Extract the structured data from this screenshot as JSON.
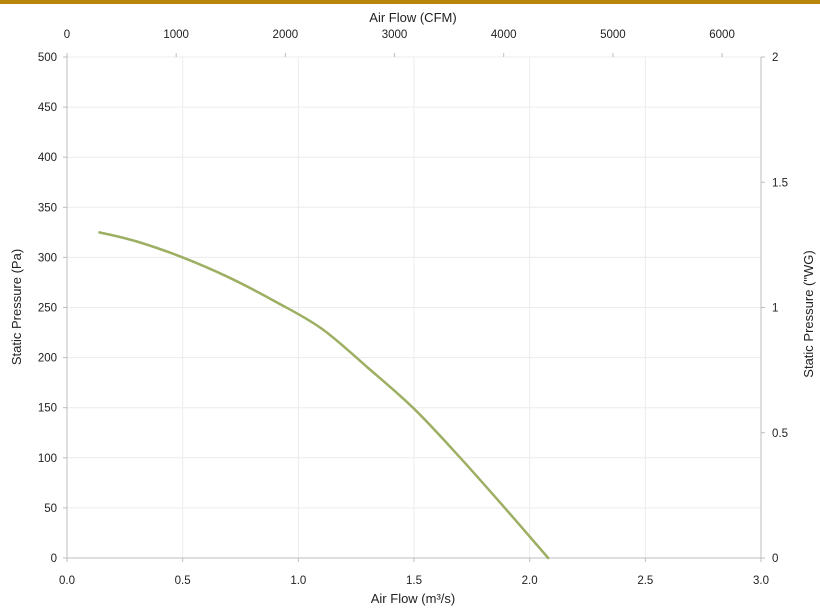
{
  "colors": {
    "top_bar": "#b8860b",
    "curve": "#9caf62",
    "grid": "#ececec",
    "axis": "#bdbdbd",
    "text": "#222222"
  },
  "chart_data": {
    "type": "line",
    "title": "",
    "xlabel": "Air Flow (m³/s)",
    "x2label": "Air Flow (CFM)",
    "ylabel": "Static Pressure (Pa)",
    "y2label": "Static Pressure (\"WG)",
    "xlim": [
      0,
      3.0
    ],
    "x2lim": [
      0,
      6356.6
    ],
    "ylim": [
      0,
      500
    ],
    "y2lim": [
      0,
      2
    ],
    "x_ticks": [
      "0.0",
      "0.5",
      "1.0",
      "1.5",
      "2.0",
      "2.5",
      "3.0"
    ],
    "x2_ticks": [
      "0",
      "1000",
      "2000",
      "3000",
      "4000",
      "5000",
      "6000"
    ],
    "y_ticks": [
      "0",
      "50",
      "100",
      "150",
      "200",
      "250",
      "300",
      "350",
      "400",
      "450",
      "500"
    ],
    "y2_ticks": [
      "0",
      "0.5",
      "1",
      "1.5",
      "2"
    ],
    "grid": true,
    "legend": "none",
    "series": [
      {
        "x": [
          0.14,
          0.3,
          0.5,
          0.7,
          0.9,
          1.1,
          1.3,
          1.5,
          1.7,
          1.9,
          2.08
        ],
        "y": [
          325,
          316,
          300,
          280,
          256,
          229,
          190,
          149,
          100,
          48,
          0
        ]
      }
    ]
  }
}
